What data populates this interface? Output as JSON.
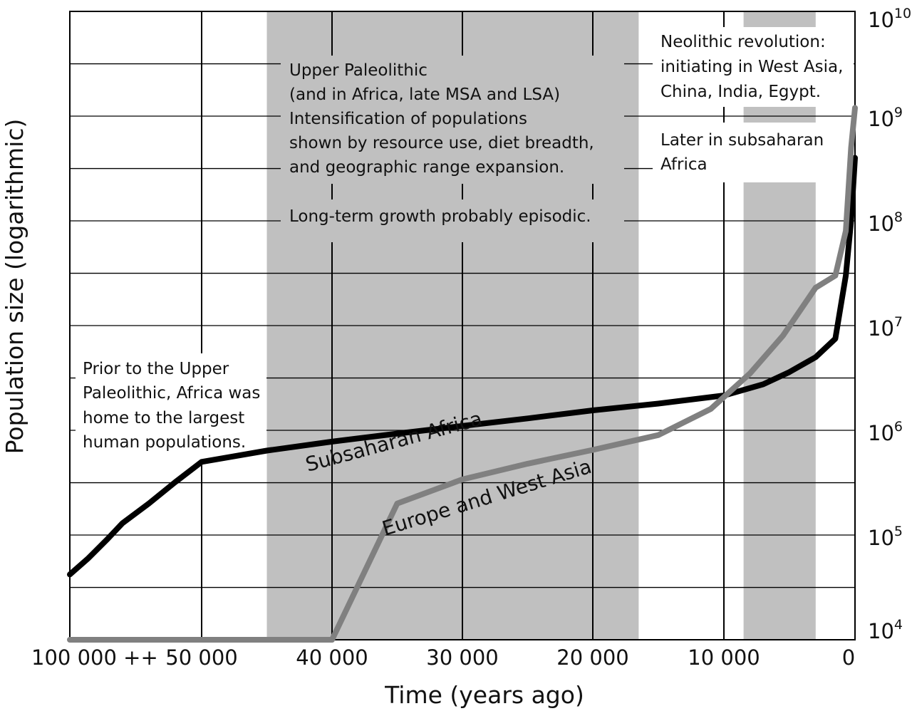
{
  "chart_data": {
    "type": "line",
    "xlabel": "Time (years ago)",
    "ylabel": "Population size (logarithmic)",
    "xlim": [
      100000,
      0
    ],
    "ylim": [
      10000,
      10000000000
    ],
    "y_scale": "log",
    "x_ticks": [
      {
        "value": 100000,
        "label": "100 000 ++"
      },
      {
        "value": 50000,
        "label": "50 000"
      },
      {
        "value": 40000,
        "label": "40 000"
      },
      {
        "value": 30000,
        "label": "30 000"
      },
      {
        "value": 20000,
        "label": "20 000"
      },
      {
        "value": 10000,
        "label": "10 000"
      },
      {
        "value": 0,
        "label": "0"
      }
    ],
    "y_ticks": [
      {
        "value": 10000,
        "base": "10",
        "exp": "4"
      },
      {
        "value": 100000,
        "base": "10",
        "exp": "5"
      },
      {
        "value": 1000000,
        "base": "10",
        "exp": "6"
      },
      {
        "value": 10000000,
        "base": "10",
        "exp": "7"
      },
      {
        "value": 100000000,
        "base": "10",
        "exp": "8"
      },
      {
        "value": 1000000000,
        "base": "10",
        "exp": "9"
      },
      {
        "value": 10000000000,
        "base": "10",
        "exp": "10"
      }
    ],
    "grid": true,
    "shaded_periods": [
      {
        "from": 45000,
        "to": 16500,
        "color": "#c0c0c0"
      },
      {
        "from": 8500,
        "to": 3000,
        "color": "#c0c0c0"
      }
    ],
    "series": [
      {
        "name": "Subsaharan Africa",
        "color": "#000000",
        "x": [
          100000,
          93000,
          86000,
          80000,
          70000,
          60000,
          50000,
          45000,
          40000,
          35000,
          30000,
          25000,
          20000,
          15000,
          10000,
          7000,
          5000,
          3000,
          1500,
          700,
          300,
          0
        ],
        "y": [
          42000,
          60000,
          90000,
          130000,
          200000,
          320000,
          500000,
          640000,
          780000,
          930000,
          1100000,
          1300000,
          1550000,
          1800000,
          2150000,
          2750000,
          3600000,
          5000000,
          7500000,
          30000000,
          100000000,
          400000000
        ]
      },
      {
        "name": "Europe and West Asia",
        "color": "#808080",
        "x": [
          100000,
          93000,
          89000,
          86000,
          82000,
          78000,
          74000,
          70000,
          65000,
          60000,
          55000,
          50000,
          45000,
          40000,
          35000,
          30000,
          25000,
          20000,
          15000,
          11000,
          8000,
          5500,
          3000,
          1500,
          700,
          300,
          0
        ],
        "y": [
          10000,
          10000,
          10000,
          10000,
          10000,
          10000,
          10000,
          10000,
          10000,
          10000,
          10000,
          10000,
          10000,
          10000,
          200000,
          340000,
          480000,
          650000,
          900000,
          1600000,
          3500000,
          8000000,
          23000000,
          30000000,
          80000000,
          500000000,
          1200000000
        ]
      }
    ],
    "annotations": [
      {
        "lines": [
          "Upper Paleolithic",
          "(and in Africa, late MSA and LSA)",
          "Intensification of populations",
          "shown by resource use, diet breadth,",
          "and geographic range expansion."
        ]
      },
      {
        "lines": [
          "Long-term growth probably episodic."
        ]
      },
      {
        "lines": [
          "Neolithic revolution:",
          "initiating in West Asia,",
          "China, India, Egypt."
        ]
      },
      {
        "lines": [
          "Later in subsaharan",
          "Africa"
        ]
      },
      {
        "lines": [
          "Prior to the Upper",
          "Paleolithic, Africa was",
          "home to the largest",
          "human populations."
        ]
      }
    ]
  }
}
